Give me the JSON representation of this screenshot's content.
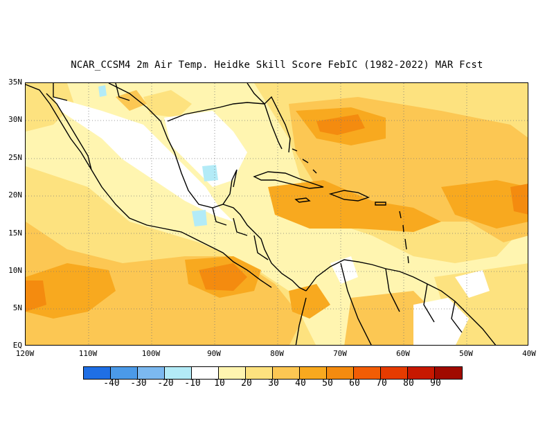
{
  "title": "NCAR_CCSM4  2m Air Temp. Heidke Skill Score FebIC (1982-2022) MAR Fcst",
  "lat_labels": [
    "35N",
    "30N",
    "25N",
    "20N",
    "15N",
    "10N",
    "5N",
    "EQ"
  ],
  "lon_labels": [
    "120W",
    "110W",
    "100W",
    "90W",
    "80W",
    "70W",
    "60W",
    "50W",
    "40W"
  ],
  "colorbar": {
    "colors": [
      "#1f6fe5",
      "#4b9ae8",
      "#7cb9f0",
      "#b3ebf7",
      "#ffffff",
      "#fff5b0",
      "#fde27f",
      "#fcc753",
      "#f8a91f",
      "#f48b0f",
      "#f25d05",
      "#e63b00",
      "#c71800",
      "#a00a00"
    ],
    "labels": [
      "-40",
      "-30",
      "-20",
      "-10",
      "10",
      "20",
      "30",
      "40",
      "50",
      "60",
      "70",
      "80",
      "90"
    ]
  }
}
